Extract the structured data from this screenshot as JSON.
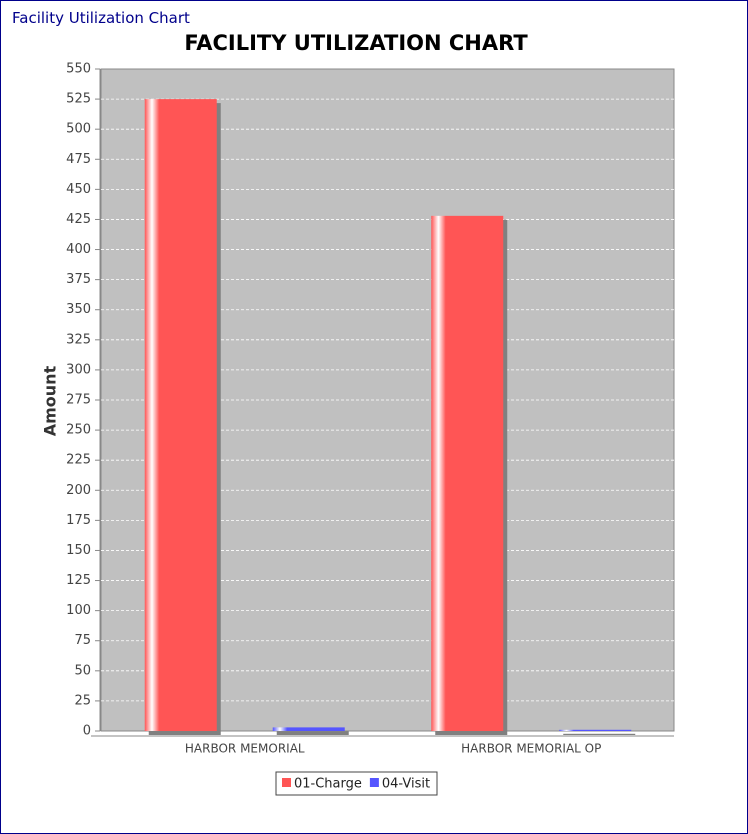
{
  "window_title": "Facility Utilization Chart",
  "chart_data": {
    "type": "bar",
    "title": "FACILITY  UTILIZATION CHART",
    "y_label": "Amount",
    "categories": [
      "HARBOR MEMORIAL",
      "HARBOR MEMORIAL OP"
    ],
    "series": [
      {
        "name": "01-Charge",
        "color": "#ff5555",
        "values": [
          525,
          428
        ]
      },
      {
        "name": "04-Visit",
        "color": "#5555ff",
        "values": [
          3,
          1
        ]
      }
    ],
    "ylim": [
      0,
      550
    ],
    "yticks": [
      0,
      25,
      50,
      75,
      100,
      125,
      150,
      175,
      200,
      225,
      250,
      275,
      300,
      325,
      350,
      375,
      400,
      425,
      450,
      475,
      500,
      525,
      550
    ],
    "grid": true,
    "legend": "bottom"
  }
}
